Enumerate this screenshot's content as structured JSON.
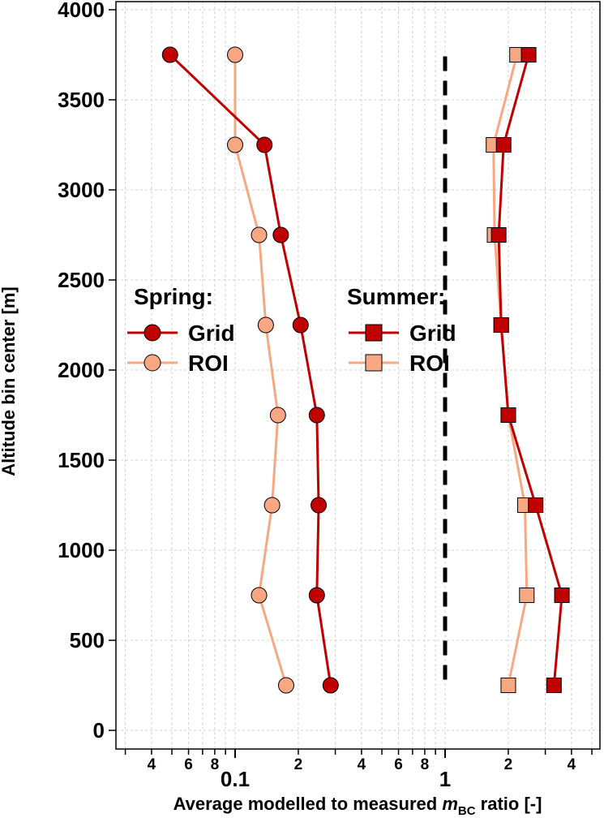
{
  "chart_data": {
    "type": "line",
    "xscale": "log",
    "xlim": [
      0.025,
      5
    ],
    "ylim": [
      0,
      4000
    ],
    "grid": true,
    "title": "",
    "xlabel_main": "Average modelled to measured ",
    "xlabel_var": "m",
    "xlabel_sub": "BC",
    "xlabel_tail": " ratio [-]",
    "ylabel": "Altitude bin center [m]",
    "x_major_ticks": [
      {
        "value": 0.1,
        "label": "0.1"
      },
      {
        "value": 1,
        "label": "1"
      }
    ],
    "x_minor_ticks": [
      {
        "value": 0.04,
        "label": "4"
      },
      {
        "value": 0.06,
        "label": "6"
      },
      {
        "value": 0.08,
        "label": "8"
      },
      {
        "value": 0.2,
        "label": "2"
      },
      {
        "value": 0.4,
        "label": "4"
      },
      {
        "value": 0.6,
        "label": "6"
      },
      {
        "value": 0.8,
        "label": "8"
      },
      {
        "value": 2,
        "label": "2"
      },
      {
        "value": 4,
        "label": "4"
      }
    ],
    "y_ticks": [
      0,
      500,
      1000,
      1500,
      2000,
      2500,
      3000,
      3500,
      4000
    ],
    "y_tick_labels": [
      "0",
      "500",
      "1000",
      "1500",
      "2000",
      "2500",
      "3000",
      "3500",
      "4000"
    ],
    "reference_line": {
      "x": 1,
      "y_from": 250,
      "y_to": 3750,
      "style": "dashed"
    },
    "series": [
      {
        "group": "Spring",
        "name": "Grid",
        "marker": "circle",
        "color": "#c00000",
        "points": [
          [
            0.049,
            3750
          ],
          [
            0.138,
            3250
          ],
          [
            0.165,
            2750
          ],
          [
            0.205,
            2250
          ],
          [
            0.245,
            1750
          ],
          [
            0.25,
            1250
          ],
          [
            0.245,
            750
          ],
          [
            0.285,
            250
          ]
        ]
      },
      {
        "group": "Spring",
        "name": "ROI",
        "marker": "circle",
        "color": "#f7a882",
        "points": [
          [
            0.1,
            3750
          ],
          [
            0.1,
            3250
          ],
          [
            0.13,
            2750
          ],
          [
            0.14,
            2250
          ],
          [
            0.16,
            1750
          ],
          [
            0.15,
            1250
          ],
          [
            0.13,
            750
          ],
          [
            0.175,
            250
          ]
        ]
      },
      {
        "group": "Summer",
        "name": "Grid",
        "marker": "square",
        "color": "#c00000",
        "points": [
          [
            2.5,
            3750
          ],
          [
            1.9,
            3250
          ],
          [
            1.8,
            2750
          ],
          [
            1.85,
            2250
          ],
          [
            2.0,
            1750
          ],
          [
            2.7,
            1250
          ],
          [
            3.6,
            750
          ],
          [
            3.3,
            250
          ]
        ]
      },
      {
        "group": "Summer",
        "name": "ROI",
        "marker": "square",
        "color": "#f7a882",
        "points": [
          [
            2.2,
            3750
          ],
          [
            1.7,
            3250
          ],
          [
            1.72,
            2750
          ],
          [
            1.85,
            2250
          ],
          [
            2.0,
            1750
          ],
          [
            2.4,
            1250
          ],
          [
            2.45,
            750
          ],
          [
            2.0,
            250
          ]
        ]
      }
    ],
    "legends": [
      {
        "title": "Spring:",
        "items": [
          {
            "label": "Grid",
            "marker": "circle",
            "color": "#c00000"
          },
          {
            "label": "ROI",
            "marker": "circle",
            "color": "#f7a882"
          }
        ]
      },
      {
        "title": "Summer:",
        "items": [
          {
            "label": "Grid",
            "marker": "square",
            "color": "#c00000"
          },
          {
            "label": "ROI",
            "marker": "square",
            "color": "#f7a882"
          }
        ]
      }
    ]
  }
}
